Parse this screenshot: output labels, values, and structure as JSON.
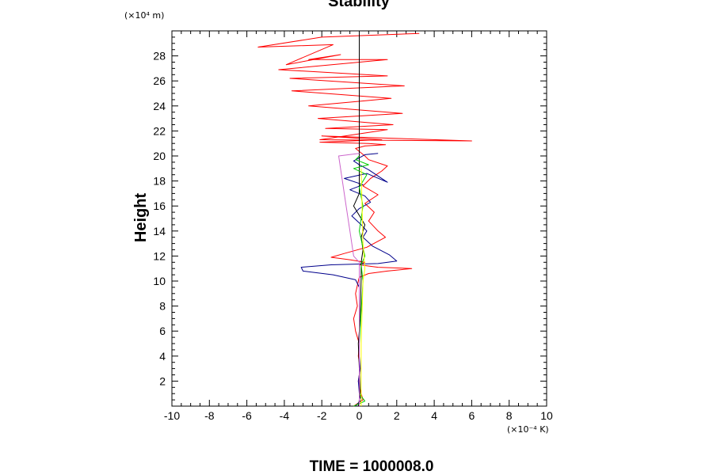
{
  "chart_data": {
    "type": "line",
    "title": "Stability",
    "ylabel": "Height",
    "xlabel": "",
    "x_unit": "(×10⁻⁴ K)",
    "y_unit": "(×10⁴ m)",
    "footer": "TIME = 1000008.0",
    "xlim": [
      -10,
      10
    ],
    "ylim": [
      0,
      30
    ],
    "x_ticks": [
      -10,
      -8,
      -6,
      -4,
      -2,
      0,
      2,
      4,
      6,
      8,
      10
    ],
    "y_ticks": [
      2,
      4,
      6,
      8,
      10,
      12,
      14,
      16,
      18,
      20,
      22,
      24,
      26,
      28
    ],
    "grid": false,
    "series": [
      {
        "color": "#ff0000",
        "x": [
          -0.3,
          0.2,
          0.1,
          -0.05,
          0.05,
          -0.05,
          0.0,
          -0.2,
          -0.3,
          -0.1,
          -0.2,
          -0.05,
          0.0,
          0.5,
          1.5,
          2.8,
          1.0,
          0.0,
          0.3,
          -0.5,
          -1.5,
          -0.8,
          0.4,
          1.4,
          1.0,
          0.5,
          0.8,
          0.3,
          1.0,
          0.2,
          0.6,
          1.2,
          1.5,
          0.5,
          0.3,
          -0.2,
          0.3,
          1.4,
          0.5,
          -2.1,
          1.2,
          -2.0,
          6.0,
          -2.1,
          1.5,
          -1.8,
          1.8,
          -2.2,
          2.3,
          -2.7,
          1.7,
          -3.6,
          2.4,
          -3.7,
          1.5,
          -4.3,
          1.5,
          -2.7,
          -1.0,
          -3.9,
          -1.4,
          -5.4,
          -2.0,
          3.2
        ],
        "y": [
          0.0,
          0.5,
          1.0,
          2.0,
          3.0,
          4.0,
          5.0,
          6.0,
          7.0,
          8.0,
          9.0,
          10.0,
          10.3,
          10.6,
          10.8,
          11.0,
          11.1,
          11.3,
          11.5,
          11.7,
          11.9,
          12.2,
          12.7,
          13.5,
          14.0,
          14.8,
          15.5,
          16.2,
          16.9,
          17.6,
          18.2,
          18.8,
          19.2,
          19.7,
          20.0,
          20.6,
          20.8,
          20.9,
          21.0,
          21.1,
          21.3,
          21.6,
          21.2,
          21.3,
          22.1,
          22.2,
          22.5,
          23.0,
          23.4,
          24.0,
          24.6,
          25.2,
          25.6,
          26.2,
          26.4,
          26.9,
          27.7,
          27.7,
          28.1,
          27.3,
          28.9,
          28.7,
          29.5,
          29.8
        ]
      },
      {
        "color": "#00008b",
        "x": [
          -0.2,
          0.1,
          0.0,
          -0.05,
          0.05,
          0.0,
          0.0,
          0.0,
          -0.2,
          -1.4,
          -3.0,
          -3.1,
          -1.5,
          1.0,
          2.0,
          1.6,
          0.7,
          0.2,
          0.4,
          0.1,
          -0.4,
          0.0,
          0.6,
          0.3,
          -0.5,
          0.2,
          -0.8,
          0.4,
          1.5,
          0.5,
          0.0,
          -0.3,
          0.3,
          1.0
        ],
        "y": [
          0.0,
          0.5,
          1.0,
          2.0,
          3.0,
          4.0,
          7.0,
          9.5,
          10.1,
          10.5,
          10.8,
          11.1,
          11.3,
          11.4,
          11.6,
          12.1,
          12.8,
          13.5,
          14.0,
          14.5,
          15.2,
          15.8,
          16.3,
          16.8,
          17.3,
          17.7,
          18.2,
          18.6,
          17.9,
          18.9,
          19.3,
          19.6,
          20.1,
          20.2
        ]
      },
      {
        "color": "#000000",
        "x": [
          -0.05,
          0.05,
          0.0,
          -0.05,
          0.05,
          0.1,
          0.1,
          0.2,
          0.1,
          0.3,
          -0.3,
          0.0,
          0.0,
          0.0,
          0.0
        ],
        "y": [
          0.0,
          1.0,
          3.0,
          5.0,
          7.0,
          10.3,
          11.5,
          12.5,
          13.5,
          14.5,
          16.0,
          17.0,
          18.5,
          20.0,
          29.8
        ]
      },
      {
        "color": "#00cc00",
        "x": [
          -0.3,
          0.3,
          0.0,
          0.0,
          0.2,
          0.1,
          0.3,
          0.0,
          0.2,
          0.0,
          0.4,
          -0.3,
          0.5,
          -0.2,
          0.0
        ],
        "y": [
          0.0,
          0.4,
          1.0,
          5.0,
          10.0,
          11.3,
          12.0,
          14.0,
          16.0,
          17.5,
          18.5,
          19.0,
          19.3,
          19.7,
          20.0
        ]
      },
      {
        "color": "#ffff00",
        "x": [
          0.1,
          0.1,
          0.2,
          0.3,
          0.2,
          0.15,
          0.1
        ],
        "y": [
          0.0,
          5.0,
          10.0,
          11.0,
          13.0,
          16.0,
          19.0
        ]
      },
      {
        "color": "#cc66cc",
        "x": [
          0.0,
          0.0,
          -0.3,
          -0.5,
          -0.7,
          -1.1,
          0.0
        ],
        "y": [
          0.0,
          11.5,
          12.0,
          14.0,
          16.0,
          20.0,
          20.2
        ]
      }
    ]
  }
}
